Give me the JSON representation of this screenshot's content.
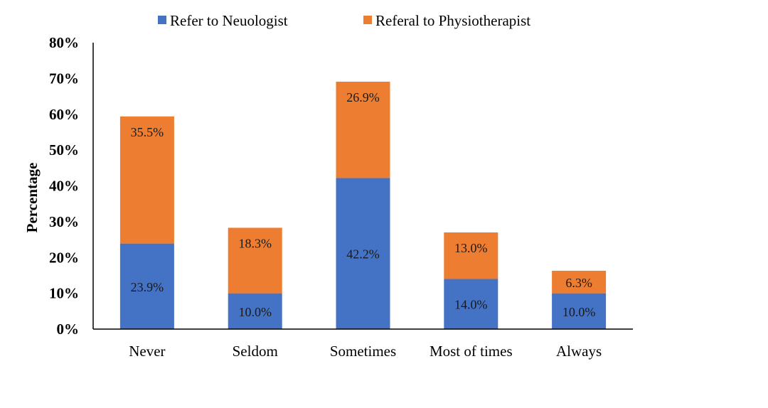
{
  "chart_data": {
    "type": "bar",
    "stacked": true,
    "title": "",
    "xlabel": "",
    "ylabel": "Percentage",
    "ylim": [
      0,
      80
    ],
    "y_ticks": [
      "0%",
      "10%",
      "20%",
      "30%",
      "40%",
      "50%",
      "60%",
      "70%",
      "80%"
    ],
    "categories": [
      "Never",
      "Seldom",
      "Sometimes",
      "Most of times",
      "Always"
    ],
    "series": [
      {
        "name": "Refer to Neuologist",
        "color": "#4472C4",
        "values": [
          23.9,
          10.0,
          42.2,
          14.0,
          10.0
        ],
        "labels": [
          "23.9%",
          "10.0%",
          "42.2%",
          "14.0%",
          "10.0%"
        ]
      },
      {
        "name": "Referal to Physiotherapist",
        "color": "#ED7D31",
        "values": [
          35.5,
          18.3,
          26.9,
          13.0,
          6.3
        ],
        "labels": [
          "35.5%",
          "18.3%",
          "26.9%",
          "13.0%",
          "6.3%"
        ]
      }
    ],
    "legend_position": "top",
    "grid": false
  }
}
